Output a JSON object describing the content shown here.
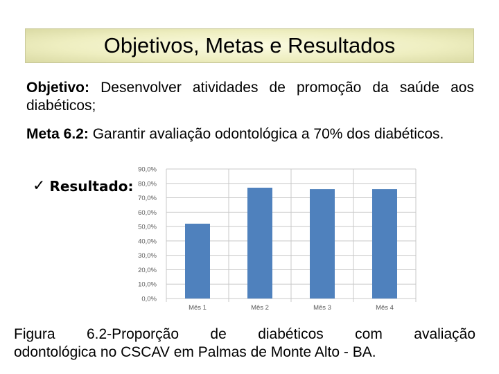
{
  "title": "Objetivos, Metas e Resultados",
  "objective": {
    "label": "Objetivo:",
    "text": "Desenvolver atividades de promoção da saúde aos diabéticos;"
  },
  "goal": {
    "label": "Meta 6.2:",
    "text": "Garantir avaliação odontológica a 70% dos diabéticos."
  },
  "result_label": "Resultado:",
  "caption": {
    "line1": "Figura 6.2-Proporção de diabéticos com avaliação",
    "line2": "odontológica no CSCAV em Palmas de Monte Alto - BA."
  },
  "colors": {
    "bar": "#4f81bd",
    "grid": "#c8c8c8",
    "axis_text": "#595959"
  },
  "chart_data": {
    "type": "bar",
    "categories": [
      "Mês 1",
      "Mês 2",
      "Mês 3",
      "Mês 4"
    ],
    "values": [
      52.0,
      77.0,
      76.0,
      76.0
    ],
    "title": "",
    "xlabel": "",
    "ylabel": "",
    "ylim": [
      0,
      90
    ],
    "yticks": [
      "0,0%",
      "10,0%",
      "20,0%",
      "30,0%",
      "40,0%",
      "50,0%",
      "60,0%",
      "70,0%",
      "80,0%",
      "90,0%"
    ],
    "grid": true,
    "legend": "none"
  }
}
